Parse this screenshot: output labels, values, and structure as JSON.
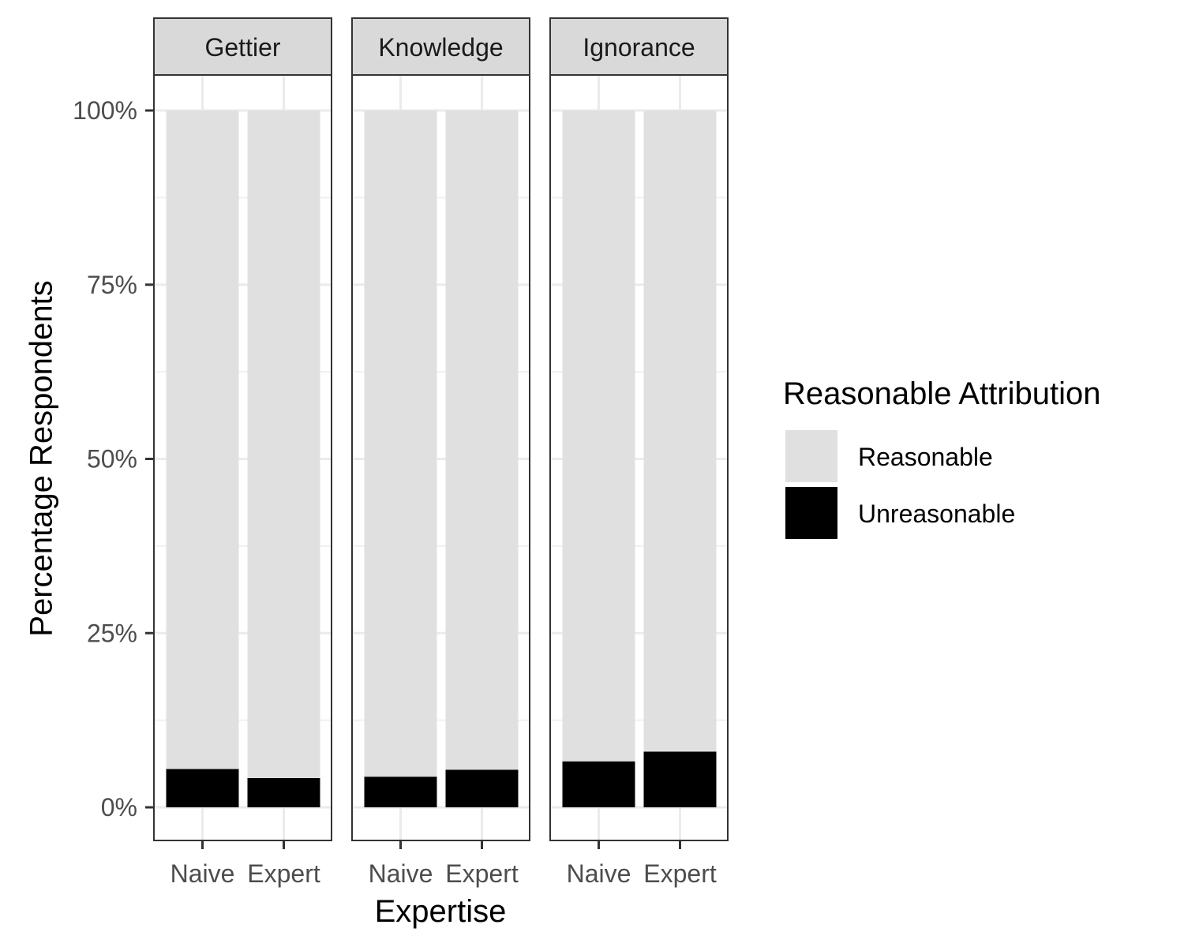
{
  "chart_data": {
    "type": "bar",
    "stacked": true,
    "facets": [
      "Gettier",
      "Knowledge",
      "Ignorance"
    ],
    "categories": [
      "Naive",
      "Expert"
    ],
    "xlabel": "Expertise",
    "ylabel": "Percentage Respondents",
    "ylim": [
      0,
      1
    ],
    "y_ticks": [
      "0%",
      "25%",
      "50%",
      "75%",
      "100%"
    ],
    "series": [
      {
        "name": "Reasonable",
        "color": "#e0e0e0",
        "values": {
          "Gettier": [
            0.945,
            0.958
          ],
          "Knowledge": [
            0.956,
            0.946
          ],
          "Ignorance": [
            0.934,
            0.92
          ]
        }
      },
      {
        "name": "Unreasonable",
        "color": "#000000",
        "values": {
          "Gettier": [
            0.055,
            0.042
          ],
          "Knowledge": [
            0.044,
            0.054
          ],
          "Ignorance": [
            0.066,
            0.08
          ]
        }
      }
    ],
    "legend": {
      "title": "Reasonable Attribution",
      "position": "right",
      "entries": [
        "Reasonable",
        "Unreasonable"
      ]
    },
    "grid": true
  }
}
